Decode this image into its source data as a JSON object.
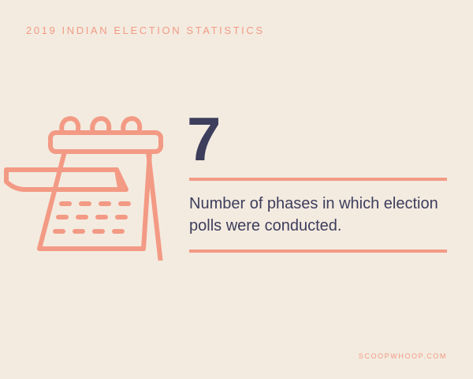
{
  "header": {
    "title": "2019 INDIAN ELECTION STATISTICS"
  },
  "stat": {
    "value": "7",
    "description": "Number of phases in which election polls were conducted."
  },
  "footer": {
    "brand": "SCOOPWHOOP.COM"
  },
  "icon": {
    "name": "calendar-icon",
    "color": "#f39a85"
  },
  "colors": {
    "background": "#f3ebe0",
    "accent": "#f39a85",
    "text": "#3d3d5c"
  }
}
